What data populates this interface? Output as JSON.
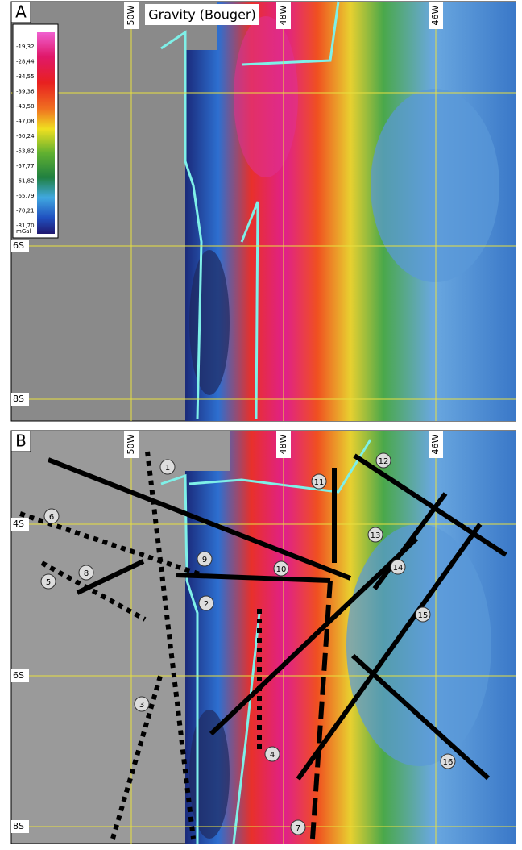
{
  "panel_a": {
    "label": "A",
    "title": "Gravity (Bouger)",
    "lon_labels": [
      "50W",
      "48W",
      "46W"
    ],
    "lat_labels": [
      "6S",
      "8S"
    ],
    "legend": {
      "values": [
        "-19,32",
        "-28,44",
        "-34,55",
        "-39,36",
        "-43,58",
        "-47,08",
        "-50,24",
        "-53,82",
        "-57,77",
        "-61,82",
        "-65,79",
        "-70,21",
        "-81,70"
      ],
      "unit": "mGal"
    }
  },
  "panel_b": {
    "label": "B",
    "lon_labels": [
      "50W",
      "48W",
      "46W"
    ],
    "lat_labels": [
      "4S",
      "6S",
      "8S"
    ],
    "markers": [
      "1",
      "2",
      "3",
      "4",
      "5",
      "6",
      "7",
      "8",
      "9",
      "10",
      "11",
      "12",
      "13",
      "14",
      "15",
      "16"
    ]
  }
}
